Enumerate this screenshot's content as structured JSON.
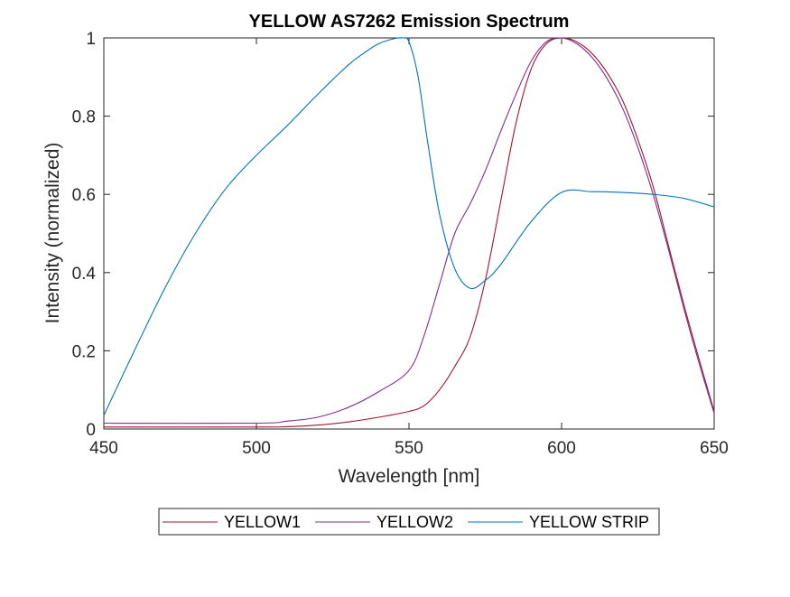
{
  "chart_data": {
    "type": "line",
    "title": "YELLOW AS7262 Emission Spectrum",
    "xlabel": "Wavelength [nm]",
    "ylabel": "Intensity (normalized)",
    "xlim": [
      450,
      650
    ],
    "ylim": [
      0,
      1
    ],
    "xticks": [
      450,
      500,
      550,
      600,
      650
    ],
    "yticks": [
      0,
      0.2,
      0.4,
      0.6,
      0.8,
      1
    ],
    "xtick_labels": [
      "450",
      "500",
      "550",
      "600",
      "650"
    ],
    "ytick_labels": [
      "0",
      "0.2",
      "0.4",
      "0.6",
      "0.8",
      "1"
    ],
    "grid": false,
    "legend_position": "bottom-outside",
    "series": [
      {
        "name": "YELLOW1",
        "color": "#A2142F",
        "x": [
          450,
          500,
          510,
          520,
          530,
          540,
          550,
          555,
          560,
          565,
          570,
          575,
          580,
          585,
          590,
          595,
          600,
          605,
          610,
          615,
          620,
          625,
          630,
          635,
          640,
          645,
          650
        ],
        "y": [
          0.005,
          0.005,
          0.006,
          0.01,
          0.018,
          0.03,
          0.045,
          0.06,
          0.1,
          0.16,
          0.235,
          0.38,
          0.58,
          0.78,
          0.92,
          0.985,
          1.0,
          0.99,
          0.96,
          0.91,
          0.84,
          0.74,
          0.62,
          0.47,
          0.32,
          0.18,
          0.045
        ]
      },
      {
        "name": "YELLOW2",
        "color": "#7E2F8E",
        "x": [
          450,
          500,
          510,
          520,
          530,
          540,
          550,
          555,
          560,
          565,
          570,
          575,
          580,
          585,
          590,
          595,
          600,
          605,
          610,
          615,
          620,
          625,
          630,
          635,
          640,
          645,
          650
        ],
        "y": [
          0.015,
          0.015,
          0.02,
          0.03,
          0.055,
          0.095,
          0.15,
          0.24,
          0.37,
          0.5,
          0.575,
          0.66,
          0.76,
          0.855,
          0.94,
          0.99,
          1.0,
          0.985,
          0.95,
          0.895,
          0.82,
          0.72,
          0.6,
          0.46,
          0.31,
          0.17,
          0.04
        ]
      },
      {
        "name": "YELLOW STRIP",
        "color": "#0072BD",
        "x": [
          450,
          460,
          470,
          480,
          490,
          500,
          510,
          520,
          530,
          535,
          540,
          545,
          548,
          550,
          553,
          556,
          560,
          565,
          570,
          575,
          580,
          590,
          600,
          610,
          620,
          630,
          640,
          650
        ],
        "y": [
          0.035,
          0.2,
          0.36,
          0.5,
          0.615,
          0.7,
          0.775,
          0.855,
          0.93,
          0.96,
          0.985,
          0.998,
          1.0,
          0.99,
          0.9,
          0.74,
          0.55,
          0.41,
          0.36,
          0.38,
          0.42,
          0.53,
          0.605,
          0.607,
          0.605,
          0.6,
          0.59,
          0.568
        ]
      }
    ]
  }
}
